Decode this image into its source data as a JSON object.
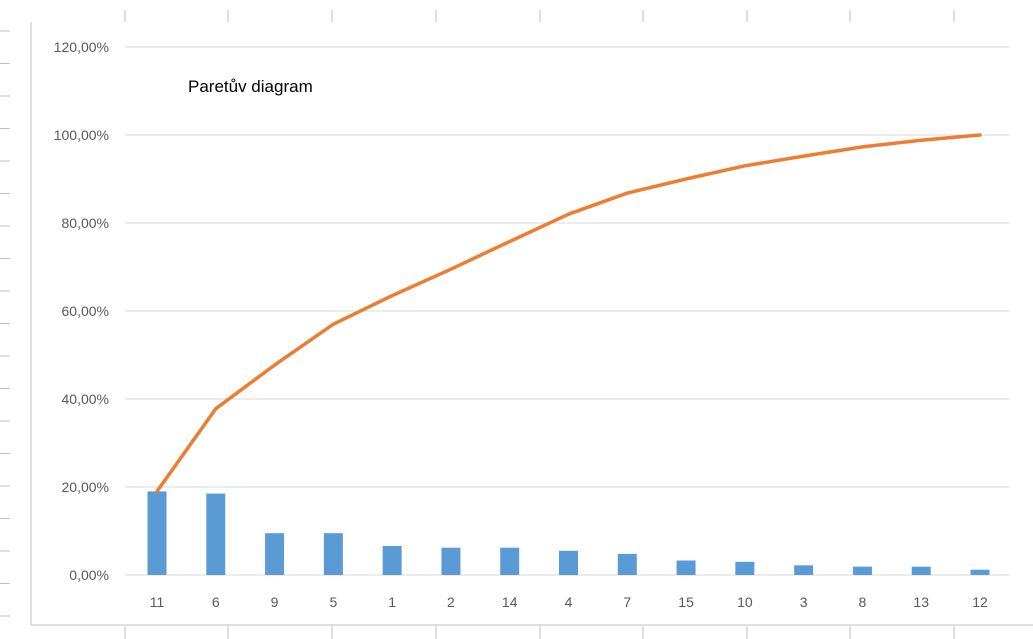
{
  "chart_data": {
    "type": "bar",
    "title": "Paretův diagram",
    "categories": [
      "11",
      "6",
      "9",
      "5",
      "1",
      "2",
      "14",
      "4",
      "7",
      "15",
      "10",
      "3",
      "8",
      "13",
      "12"
    ],
    "series": [
      {
        "type": "bar",
        "values": [
          0.19,
          0.185,
          0.095,
          0.095,
          0.066,
          0.062,
          0.062,
          0.055,
          0.048,
          0.033,
          0.03,
          0.022,
          0.019,
          0.019,
          0.012
        ]
      },
      {
        "type": "line",
        "values": [
          0.19,
          0.378,
          0.477,
          0.57,
          0.635,
          0.695,
          0.758,
          0.82,
          0.868,
          0.9,
          0.93,
          0.952,
          0.973,
          0.988,
          1.0
        ]
      }
    ],
    "yticks": [
      "0,00%",
      "20,00%",
      "40,00%",
      "60,00%",
      "80,00%",
      "100,00%",
      "120,00%"
    ],
    "ylim": [
      0,
      1.2
    ],
    "grid": true,
    "legend": "none",
    "colors": {
      "bar": "#5b9bd5",
      "line": "#ed7d31",
      "grid": "#d9d9d9",
      "border": "#bfbfbf"
    }
  }
}
